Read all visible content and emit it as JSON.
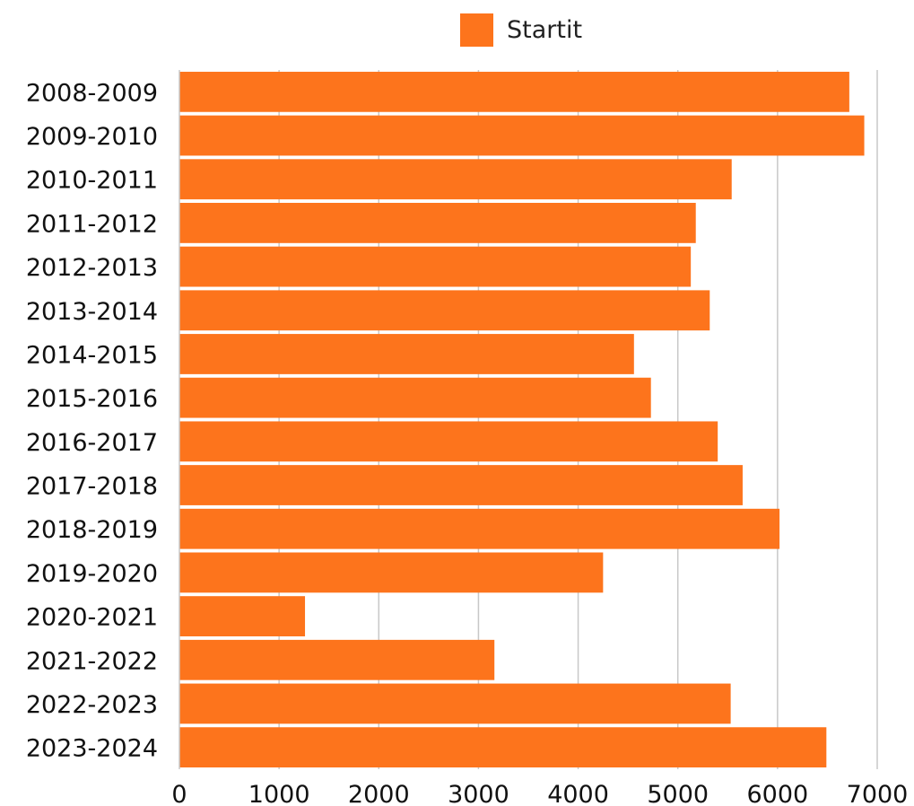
{
  "chart_data": {
    "type": "bar",
    "orientation": "horizontal",
    "categories": [
      "2008-2009",
      "2009-2010",
      "2010-2011",
      "2011-2012",
      "2012-2013",
      "2013-2014",
      "2014-2015",
      "2015-2016",
      "2016-2017",
      "2017-2018",
      "2018-2019",
      "2019-2020",
      "2020-2021",
      "2021-2022",
      "2022-2023",
      "2023-2024"
    ],
    "series": [
      {
        "name": "Startit",
        "color": "#fd741c",
        "values": [
          6720,
          6870,
          5540,
          5180,
          5130,
          5320,
          4560,
          4730,
          5400,
          5650,
          6020,
          4250,
          1260,
          3160,
          5530,
          6490
        ]
      }
    ],
    "xlim": [
      0,
      7000
    ],
    "xticks": [
      "0",
      "1000",
      "2000",
      "3000",
      "4000",
      "5000",
      "6000",
      "7000"
    ],
    "grid": true,
    "grid_color": "#c8c8c8",
    "legend_position": "top-center",
    "title": "",
    "xlabel": "",
    "ylabel": ""
  }
}
